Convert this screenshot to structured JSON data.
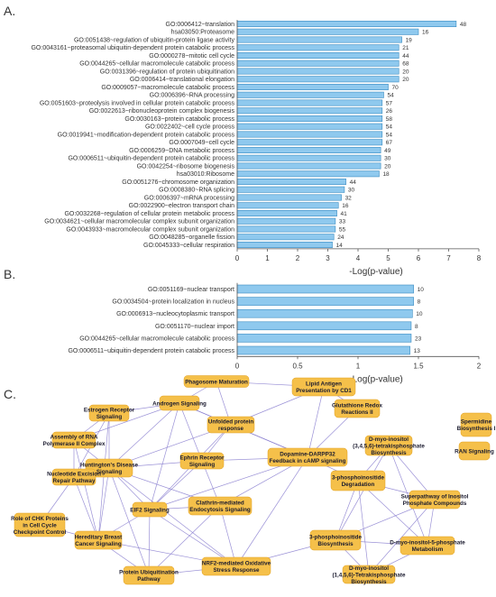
{
  "panels": {
    "a_label": "A.",
    "b_label": "B.",
    "c_label": "C."
  },
  "colors": {
    "bar_fill": "#8fc9ee",
    "bar_stroke": "#3a8cc2",
    "node_fill": "#f5c04a",
    "node_stroke": "#e0a020",
    "edge": "#8a7fd0",
    "axis": "#555555"
  },
  "chart_data": [
    {
      "type": "bar",
      "orientation": "horizontal",
      "categories": [
        "GO:0006412~translation",
        "hsa03050:Proteasome",
        "GO:0051438~regulation of ubiquitin-protein ligase activity",
        "GO:0043161~proteasomal ubiquitin-dependent protein catabolic process",
        "GO:0000278~mitotic cell cycle",
        "GO:0044265~cellular macromolecule catabolic process",
        "GO:0031396~regulation of protein ubiquitination",
        "GO:0006414~translational elongation",
        "GO:0009057~macromolecule catabolic process",
        "GO:0006396~RNA processing",
        "GO:0051603~proteolysis involved in cellular protein catabolic process",
        "GO:0022613~ribonucleoprotein complex biogenesis",
        "GO:0030163~protein catabolic process",
        "GO:0022402~cell cycle process",
        "GO:0019941~modification-dependent protein catabolic process",
        "GO:0007049~cell cycle",
        "GO:0006259~DNA metabolic process",
        "GO:0006511~ubiquitin-dependent protein catabolic process",
        "GO:0042254~ribosome biogenesis",
        "hsa03010:Ribosome",
        "GO:0051276~chromosome organization",
        "GO:0008380~RNA splicing",
        "GO:0006397~mRNA processing",
        "GO:0022900~electron transport chain",
        "GO:0032268~regulation of cellular protein metabolic process",
        "GO:0034621~cellular macromolecular complex subunit organization",
        "GO:0043933~macromolecular complex subunit organization",
        "GO:0048285~organelle fission",
        "GO:0045333~cellular respiration"
      ],
      "values": [
        7.25,
        6.0,
        5.45,
        5.35,
        5.35,
        5.35,
        5.35,
        5.35,
        5.0,
        4.85,
        4.8,
        4.8,
        4.8,
        4.8,
        4.8,
        4.8,
        4.75,
        4.75,
        4.75,
        4.7,
        3.6,
        3.55,
        3.45,
        3.35,
        3.3,
        3.25,
        3.25,
        3.2,
        3.15
      ],
      "data_labels": [
        "48",
        "16",
        "19",
        "21",
        "44",
        "68",
        "20",
        "20",
        "70",
        "54",
        "57",
        "26",
        "58",
        "54",
        "54",
        "67",
        "49",
        "30",
        "20",
        "18",
        "44",
        "30",
        "32",
        "16",
        "41",
        "33",
        "55",
        "24",
        "14"
      ],
      "xlabel": "-Log(p-value)",
      "xlim": [
        0,
        8
      ],
      "xticks": [
        "0",
        "1",
        "2",
        "3",
        "4",
        "5",
        "6",
        "7",
        "8"
      ],
      "grid": false
    },
    {
      "type": "bar",
      "orientation": "horizontal",
      "categories": [
        "GO:0051169~nuclear transport",
        "GO:0034504~protein localization in nucleus",
        "GO:0006913~nucleocytoplasmic transport",
        "GO:0051170~nuclear import",
        "GO:0044265~cellular macromolecule catabolic process",
        "GO:0006511~ubiquitin-dependent protein catabolic process"
      ],
      "values": [
        1.46,
        1.46,
        1.45,
        1.44,
        1.44,
        1.43
      ],
      "data_labels": [
        "10",
        "8",
        "10",
        "8",
        "23",
        "13"
      ],
      "xlabel": "-Log(p-value)",
      "xlim": [
        0,
        2
      ],
      "xticks": [
        "0",
        "0.5",
        "1",
        "1.5",
        "2"
      ],
      "grid": false
    }
  ],
  "network": {
    "nodes": [
      {
        "id": "phagosome",
        "lines": [
          "Phagosome Maturation"
        ]
      },
      {
        "id": "lipid",
        "lines": [
          "Lipid Antigen",
          "Presentation by CD1"
        ]
      },
      {
        "id": "estrogen",
        "lines": [
          "Estrogen Receptor",
          "Signaling"
        ]
      },
      {
        "id": "androgen",
        "lines": [
          "Androgen Signaling"
        ]
      },
      {
        "id": "glutathione",
        "lines": [
          "Glutathione Redox",
          "Reactions II"
        ]
      },
      {
        "id": "spermidine",
        "lines": [
          "Spermidine",
          "Biosynthesis I"
        ]
      },
      {
        "id": "rnapol",
        "lines": [
          "Assembly of RNA",
          "Polymerase II Complex"
        ]
      },
      {
        "id": "unfolded",
        "lines": [
          "Unfolded protein",
          "response"
        ]
      },
      {
        "id": "ran",
        "lines": [
          "RAN Signaling"
        ]
      },
      {
        "id": "dmyo3456",
        "lines": [
          "D-myo-inositol",
          "(3,4,5,6)-tetrakisphosphate",
          "Biosynthesis"
        ]
      },
      {
        "id": "huntington",
        "lines": [
          "Huntington's Disease",
          "Signaling"
        ]
      },
      {
        "id": "ephrin",
        "lines": [
          "Ephrin Receptor",
          "Signaling"
        ]
      },
      {
        "id": "darpp",
        "lines": [
          "Dopamine-DARPP32",
          "Feedback in cAMP signaling"
        ]
      },
      {
        "id": "nucleotide",
        "lines": [
          "Nucleotide Excision",
          "Repair Pathway"
        ]
      },
      {
        "id": "p3degr",
        "lines": [
          "3-phosphoinositide",
          "Degradation"
        ]
      },
      {
        "id": "eif2",
        "lines": [
          "EIF2 Signaling"
        ]
      },
      {
        "id": "clathrin",
        "lines": [
          "Clathrin-mediated",
          "Endocytosis Signaling"
        ]
      },
      {
        "id": "superpath",
        "lines": [
          "Superpathway of Inositol",
          "Phosphate Compounds"
        ]
      },
      {
        "id": "chk",
        "lines": [
          "Role of CHK Proteins",
          "in Cell Cycle",
          "Checkpoint Control"
        ]
      },
      {
        "id": "breast",
        "lines": [
          "Hereditary Breast",
          "Cancer Signaling"
        ]
      },
      {
        "id": "p3bio",
        "lines": [
          "3-phosphoinositide",
          "Biosynthesis"
        ]
      },
      {
        "id": "dmyo5p",
        "lines": [
          "D-myo-inositol-5-phosphate",
          "Metabolism"
        ]
      },
      {
        "id": "ubiq",
        "lines": [
          "Protein Ubiquitination",
          "Pathway"
        ]
      },
      {
        "id": "nrf2",
        "lines": [
          "NRF2-mediated Oxidative",
          "Stress Response"
        ]
      },
      {
        "id": "dmyo1456",
        "lines": [
          "D-myo-inositol",
          "(1,4,5,6)-Tetrakisphosphate",
          "Biosynthesis"
        ]
      }
    ],
    "edges": [
      [
        "phagosome",
        "lipid"
      ],
      [
        "phagosome",
        "androgen"
      ],
      [
        "phagosome",
        "unfolded"
      ],
      [
        "lipid",
        "unfolded"
      ],
      [
        "lipid",
        "glutathione"
      ],
      [
        "lipid",
        "darpp"
      ],
      [
        "estrogen",
        "androgen"
      ],
      [
        "estrogen",
        "rnapol"
      ],
      [
        "estrogen",
        "huntington"
      ],
      [
        "estrogen",
        "nucleotide"
      ],
      [
        "estrogen",
        "breast"
      ],
      [
        "androgen",
        "huntington"
      ],
      [
        "androgen",
        "unfolded"
      ],
      [
        "androgen",
        "ephrin"
      ],
      [
        "androgen",
        "eif2"
      ],
      [
        "androgen",
        "darpp"
      ],
      [
        "androgen",
        "rnapol"
      ],
      [
        "rnapol",
        "nucleotide"
      ],
      [
        "rnapol",
        "huntington"
      ],
      [
        "rnapol",
        "breast"
      ],
      [
        "huntington",
        "ephrin"
      ],
      [
        "huntington",
        "eif2"
      ],
      [
        "huntington",
        "clathrin"
      ],
      [
        "huntington",
        "breast"
      ],
      [
        "huntington",
        "ubiq"
      ],
      [
        "huntington",
        "nrf2"
      ],
      [
        "huntington",
        "unfolded"
      ],
      [
        "huntington",
        "nucleotide"
      ],
      [
        "ephrin",
        "eif2"
      ],
      [
        "ephrin",
        "clathrin"
      ],
      [
        "ephrin",
        "darpp"
      ],
      [
        "unfolded",
        "darpp"
      ],
      [
        "unfolded",
        "eif2"
      ],
      [
        "unfolded",
        "ephrin"
      ],
      [
        "darpp",
        "clathrin"
      ],
      [
        "darpp",
        "eif2"
      ],
      [
        "darpp",
        "nrf2"
      ],
      [
        "darpp",
        "p3degr"
      ],
      [
        "darpp",
        "glutathione"
      ],
      [
        "eif2",
        "clathrin"
      ],
      [
        "eif2",
        "breast"
      ],
      [
        "eif2",
        "ubiq"
      ],
      [
        "eif2",
        "nrf2"
      ],
      [
        "clathrin",
        "nrf2"
      ],
      [
        "clathrin",
        "ubiq"
      ],
      [
        "breast",
        "chk"
      ],
      [
        "breast",
        "nucleotide"
      ],
      [
        "breast",
        "ubiq"
      ],
      [
        "breast",
        "nrf2"
      ],
      [
        "chk",
        "nucleotide"
      ],
      [
        "ubiq",
        "nrf2"
      ],
      [
        "dmyo3456",
        "p3degr"
      ],
      [
        "dmyo3456",
        "superpath"
      ],
      [
        "dmyo3456",
        "dmyo5p"
      ],
      [
        "dmyo3456",
        "p3bio"
      ],
      [
        "p3degr",
        "superpath"
      ],
      [
        "p3degr",
        "p3bio"
      ],
      [
        "p3degr",
        "dmyo5p"
      ],
      [
        "p3degr",
        "dmyo1456"
      ],
      [
        "superpath",
        "p3bio"
      ],
      [
        "superpath",
        "dmyo5p"
      ],
      [
        "superpath",
        "dmyo1456"
      ],
      [
        "p3bio",
        "dmyo5p"
      ],
      [
        "p3bio",
        "dmyo1456"
      ],
      [
        "dmyo5p",
        "dmyo1456"
      ],
      [
        "p3bio",
        "nrf2"
      ]
    ]
  }
}
